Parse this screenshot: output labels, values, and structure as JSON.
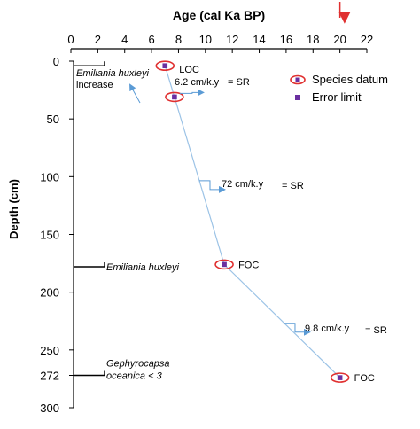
{
  "chart_data": {
    "type": "scatter",
    "title": "Age  (cal Ka BP)",
    "xlabel": "Age  (cal Ka BP)",
    "ylabel": "Depth  (cm)",
    "xlim": [
      0,
      22
    ],
    "ylim": [
      0,
      300
    ],
    "x_ticks": [
      "0",
      "2",
      "4",
      "6",
      "8",
      "10",
      "12",
      "14",
      "16",
      "18",
      "20",
      "22"
    ],
    "y_ticks": [
      "0",
      "50",
      "100",
      "150",
      "200",
      "250",
      "272",
      "300"
    ],
    "y_tick_values": [
      0,
      50,
      100,
      150,
      200,
      250,
      272,
      300
    ],
    "line_color": "#9cc3e6",
    "ellipse_color": "#e03030",
    "marker_color": "#6a2fa0",
    "arrow_color": "#e03030",
    "series": [
      {
        "name": "Species datum",
        "points": [
          {
            "x": 7.0,
            "y": 4,
            "label": "LOC"
          },
          {
            "x": 7.7,
            "y": 31,
            "label": ""
          },
          {
            "x": 11.4,
            "y": 176,
            "label": "FOC"
          },
          {
            "x": 20.0,
            "y": 274,
            "label": "FOC"
          }
        ]
      }
    ],
    "arrow_x": 20.0,
    "rate_annotations": [
      {
        "text": "6.2 cm/k.y",
        "sr": "= SR"
      },
      {
        "text": "72 cm/k.y",
        "sr": "= SR"
      },
      {
        "text": "9.8 cm/k.y",
        "sr": "= SR"
      }
    ],
    "biozones": [
      {
        "depth": 4,
        "lines": [
          "Emiliania huxleyi",
          "increase"
        ]
      },
      {
        "depth": 178,
        "lines": [
          "Emiliania huxleyi"
        ]
      },
      {
        "depth": 272,
        "lines": [
          "Gephyrocapsa",
          "oceanica < 3"
        ]
      }
    ],
    "legend": {
      "position": "top-right",
      "items": [
        {
          "label": "Species datum",
          "marker": "ellipse"
        },
        {
          "label": "Error limit",
          "marker": "square"
        }
      ]
    }
  }
}
